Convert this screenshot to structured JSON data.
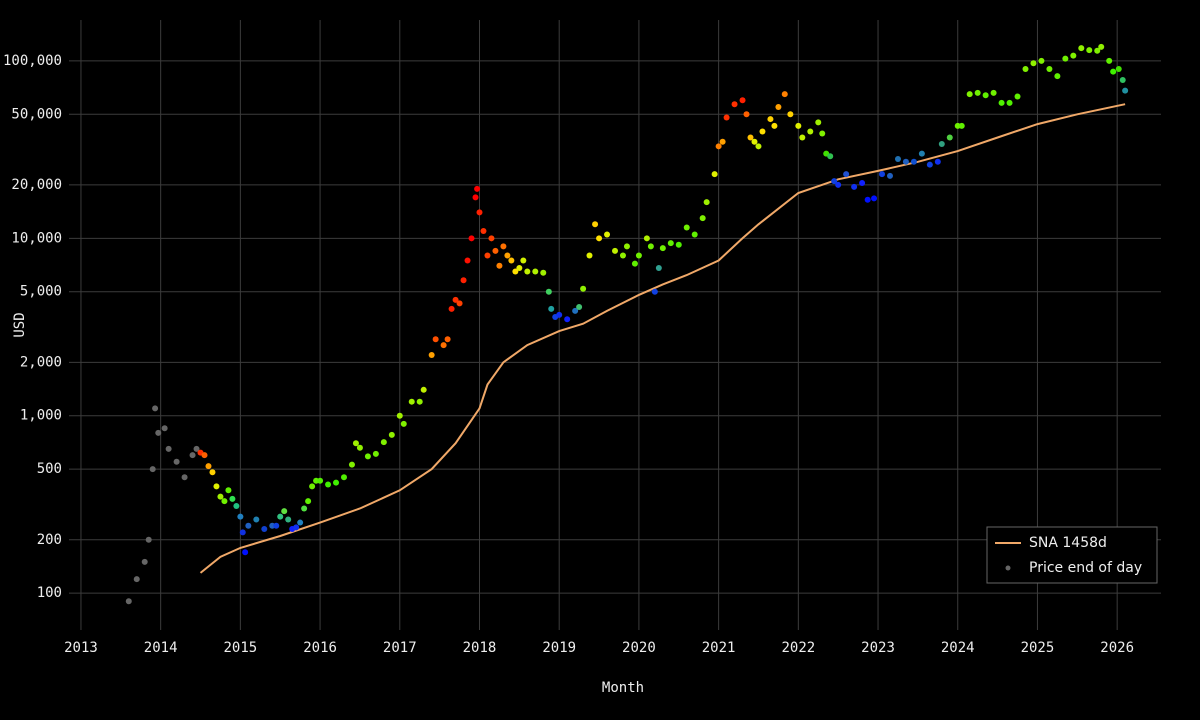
{
  "chart_data": {
    "type": "scatter-line",
    "x_label": "Month",
    "y_label": "USD",
    "log_y": true,
    "grid": true,
    "legend": "bottom-right",
    "xlim": [
      2012.85,
      2026.55
    ],
    "xticks": [
      2013,
      2014,
      2015,
      2016,
      2017,
      2018,
      2019,
      2020,
      2021,
      2022,
      2023,
      2024,
      2025,
      2026
    ],
    "ylim": [
      62,
      170000
    ],
    "yticks": [
      100,
      200,
      500,
      {
        "value": 1000,
        "label": "1,000"
      },
      {
        "value": 2000,
        "label": "2,000"
      },
      {
        "value": 5000,
        "label": "5,000"
      },
      {
        "value": 10000,
        "label": "10,000"
      },
      {
        "value": 20000,
        "label": "20,000"
      },
      {
        "value": 50000,
        "label": "50,000"
      },
      {
        "value": 100000,
        "label": "100,000"
      }
    ],
    "series": [
      {
        "name": "SNA 1458d",
        "kind": "line",
        "color": "#f0a868",
        "x": [
          2014.5,
          2014.75,
          2015.0,
          2015.5,
          2016.0,
          2016.5,
          2017.0,
          2017.4,
          2017.7,
          2018.0,
          2018.1,
          2018.3,
          2018.6,
          2019.0,
          2019.3,
          2019.6,
          2020.0,
          2020.3,
          2020.6,
          2021.0,
          2021.3,
          2021.5,
          2022.0,
          2022.5,
          2023.0,
          2023.5,
          2024.0,
          2024.5,
          2025.0,
          2025.5,
          2026.1
        ],
        "values": [
          130,
          160,
          180,
          210,
          250,
          300,
          380,
          500,
          700,
          1100,
          1500,
          2000,
          2500,
          3000,
          3300,
          3900,
          4800,
          5500,
          6200,
          7500,
          10000,
          12000,
          18000,
          21500,
          24000,
          27000,
          31000,
          37000,
          44000,
          50000,
          57000
        ]
      },
      {
        "name": "Price end of day",
        "kind": "points",
        "color": "#666666",
        "x": [
          2013.6,
          2013.7,
          2013.8,
          2013.85,
          2013.9,
          2013.93,
          2013.97,
          2014.05,
          2014.1,
          2014.2,
          2014.3,
          2014.4,
          2014.45,
          2014.5,
          2014.55,
          2014.6,
          2014.65,
          2014.7,
          2014.75,
          2014.8,
          2014.85,
          2014.9,
          2014.95,
          2015.0,
          2015.03,
          2015.06,
          2015.1,
          2015.2,
          2015.3,
          2015.4,
          2015.45,
          2015.5,
          2015.55,
          2015.6,
          2015.65,
          2015.7,
          2015.75,
          2015.8,
          2015.85,
          2015.9,
          2015.95,
          2016.0,
          2016.1,
          2016.2,
          2016.3,
          2016.4,
          2016.45,
          2016.5,
          2016.6,
          2016.7,
          2016.8,
          2016.9,
          2017.0,
          2017.05,
          2017.15,
          2017.25,
          2017.3,
          2017.4,
          2017.45,
          2017.55,
          2017.6,
          2017.65,
          2017.7,
          2017.75,
          2017.8,
          2017.85,
          2017.9,
          2017.95,
          2017.97,
          2018.0,
          2018.05,
          2018.1,
          2018.15,
          2018.2,
          2018.25,
          2018.3,
          2018.35,
          2018.4,
          2018.45,
          2018.5,
          2018.55,
          2018.6,
          2018.7,
          2018.8,
          2018.87,
          2018.9,
          2018.95,
          2019.0,
          2019.1,
          2019.2,
          2019.25,
          2019.3,
          2019.38,
          2019.45,
          2019.5,
          2019.6,
          2019.7,
          2019.8,
          2019.85,
          2019.95,
          2020.0,
          2020.1,
          2020.15,
          2020.2,
          2020.25,
          2020.3,
          2020.4,
          2020.5,
          2020.6,
          2020.7,
          2020.8,
          2020.85,
          2020.95,
          2021.0,
          2021.05,
          2021.1,
          2021.2,
          2021.3,
          2021.35,
          2021.4,
          2021.45,
          2021.5,
          2021.55,
          2021.65,
          2021.7,
          2021.75,
          2021.83,
          2021.9,
          2022.0,
          2022.05,
          2022.15,
          2022.25,
          2022.3,
          2022.35,
          2022.4,
          2022.45,
          2022.5,
          2022.6,
          2022.7,
          2022.8,
          2022.87,
          2022.95,
          2023.05,
          2023.15,
          2023.25,
          2023.35,
          2023.45,
          2023.55,
          2023.65,
          2023.75,
          2023.8,
          2023.9,
          2024.0,
          2024.05,
          2024.15,
          2024.25,
          2024.35,
          2024.45,
          2024.55,
          2024.65,
          2024.75,
          2024.85,
          2024.95,
          2025.05,
          2025.15,
          2025.25,
          2025.35,
          2025.45,
          2025.55,
          2025.65,
          2025.75,
          2025.8,
          2025.9,
          2025.95,
          2026.02,
          2026.07,
          2026.1
        ],
        "values": [
          90,
          120,
          150,
          200,
          500,
          1100,
          800,
          850,
          650,
          550,
          450,
          600,
          650,
          620,
          600,
          520,
          480,
          400,
          350,
          330,
          380,
          340,
          310,
          270,
          220,
          170,
          240,
          260,
          230,
          240,
          240,
          270,
          290,
          260,
          230,
          235,
          250,
          300,
          330,
          400,
          430,
          430,
          410,
          420,
          450,
          530,
          700,
          660,
          590,
          610,
          710,
          780,
          1000,
          900,
          1200,
          1200,
          1400,
          2200,
          2700,
          2500,
          2700,
          4000,
          4500,
          4300,
          5800,
          7500,
          10000,
          17000,
          19000,
          14000,
          11000,
          8000,
          10000,
          8500,
          7000,
          9000,
          8000,
          7500,
          6500,
          6800,
          7500,
          6500,
          6500,
          6400,
          5000,
          4000,
          3600,
          3700,
          3500,
          3900,
          4100,
          5200,
          8000,
          12000,
          10000,
          10500,
          8500,
          8000,
          9000,
          7200,
          8000,
          10000,
          9000,
          5000,
          6800,
          8800,
          9400,
          9200,
          11500,
          10500,
          13000,
          16000,
          23000,
          33000,
          35000,
          48000,
          57000,
          60000,
          50000,
          37000,
          35000,
          33000,
          40000,
          47000,
          43000,
          55000,
          65000,
          50000,
          43000,
          37000,
          40000,
          45000,
          39000,
          30000,
          29000,
          21000,
          20000,
          23000,
          19500,
          20500,
          16500,
          16800,
          23000,
          22500,
          28000,
          27000,
          27000,
          30000,
          26000,
          27000,
          34000,
          37000,
          43000,
          43000,
          65000,
          66000,
          64000,
          66000,
          58000,
          58000,
          63000,
          90000,
          97000,
          100000,
          90000,
          82000,
          103000,
          107000,
          118000,
          115000,
          114000,
          120000,
          100000,
          87000,
          90000,
          78000,
          68000
        ],
        "colors": [
          "#666",
          "#666",
          "#666",
          "#666",
          "#666",
          "#666",
          "#666",
          "#666",
          "#666",
          "#666",
          "#666",
          "#666",
          "#666",
          "#ff3000",
          "#ff6000",
          "#ffa000",
          "#ffd000",
          "#e0f000",
          "#a0f000",
          "#70f000",
          "#60f000",
          "#30e050",
          "#20c080",
          "#2080c0",
          "#1030e0",
          "#0010ff",
          "#2060c0",
          "#2080b0",
          "#1040d0",
          "#2060c0",
          "#1040e0",
          "#30c080",
          "#60e040",
          "#30b080",
          "#1020ff",
          "#1030f0",
          "#2080c0",
          "#50e040",
          "#60f000",
          "#70f000",
          "#60f000",
          "#50f000",
          "#40f000",
          "#40f000",
          "#50f000",
          "#80f000",
          "#a0f000",
          "#90f000",
          "#70f000",
          "#70f000",
          "#80f000",
          "#90f000",
          "#a0f000",
          "#80f000",
          "#a0f000",
          "#90f000",
          "#c0f000",
          "#ffa000",
          "#ff5000",
          "#ff7000",
          "#ff6000",
          "#ff2000",
          "#ff3000",
          "#ff4000",
          "#ff2000",
          "#ff1000",
          "#ff0000",
          "#ff0000",
          "#ff0000",
          "#ff2000",
          "#ff3000",
          "#ff4000",
          "#ff4000",
          "#ff6000",
          "#ff8000",
          "#ff7000",
          "#ffa000",
          "#ffc000",
          "#ffe000",
          "#e0f000",
          "#d0f000",
          "#c0f000",
          "#b0f000",
          "#a0f000",
          "#40d060",
          "#20a0a0",
          "#1040e0",
          "#1030f0",
          "#1020ff",
          "#2070c0",
          "#40c070",
          "#90f000",
          "#e0f000",
          "#ffd000",
          "#ffe000",
          "#e0f000",
          "#c0f000",
          "#90f000",
          "#90f000",
          "#60f000",
          "#70f000",
          "#b0f000",
          "#70f000",
          "#1040e0",
          "#30a090",
          "#70f000",
          "#60f000",
          "#50f000",
          "#70f000",
          "#60f000",
          "#80f000",
          "#a0f000",
          "#e0f000",
          "#ff8000",
          "#ffa000",
          "#ff3000",
          "#ff3000",
          "#ff2000",
          "#ff6000",
          "#ffc000",
          "#e0f000",
          "#c0f000",
          "#ffe000",
          "#ffd000",
          "#ffe000",
          "#ffa000",
          "#ff8000",
          "#ffd000",
          "#e0f000",
          "#c0f000",
          "#b0f000",
          "#a0f000",
          "#80f000",
          "#40e000",
          "#30c050",
          "#1040e0",
          "#1030f0",
          "#2050d0",
          "#1030f0",
          "#1020ff",
          "#0010ff",
          "#0010ff",
          "#1040e0",
          "#2060c0",
          "#2070b0",
          "#2060c0",
          "#1050d0",
          "#2080b0",
          "#1040e0",
          "#1030f0",
          "#30a080",
          "#50d040",
          "#70f000",
          "#60f000",
          "#80f000",
          "#70f000",
          "#60f000",
          "#70f000",
          "#50f000",
          "#50f000",
          "#60f000",
          "#80f000",
          "#90f000",
          "#80f000",
          "#70f000",
          "#60f000",
          "#70f000",
          "#80f000",
          "#90f000",
          "#80f000",
          "#80f000",
          "#90f000",
          "#60f000",
          "#40f000",
          "#40e000",
          "#30c060",
          "#2090a0"
        ]
      }
    ]
  }
}
